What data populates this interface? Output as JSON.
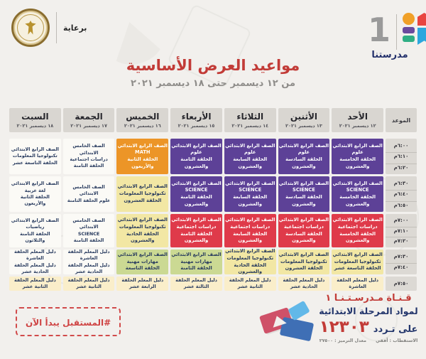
{
  "header": {
    "sponsor_label": "برعاية",
    "channel_number": "1",
    "brand_name": "مدرستنا",
    "title": "مواعيد العرض الأساسية",
    "subtitle": "من ١٢ ديسمبر حتى ١٨ ديسمبر ٢٠٢١"
  },
  "colors": {
    "title_red": "#c23b37",
    "navy": "#22356b",
    "purple": "#5d4197",
    "orange": "#ec9527",
    "red": "#df3a4a",
    "yellow": "#f2e7a4",
    "green": "#cbd993",
    "cream": "#faeeca",
    "white_cell": "#fbfaf6",
    "header_gray": "#d9d6d1"
  },
  "table": {
    "time_header": "الموعد",
    "days": [
      {
        "name": "الأحد",
        "date": "١٢ ديسمبر ٢٠٢١"
      },
      {
        "name": "الأثنين",
        "date": "١٣ ديسمبر ٢٠٢١"
      },
      {
        "name": "الثلاثاء",
        "date": "١٤ ديسمبر ٢٠٢١"
      },
      {
        "name": "الأربعاء",
        "date": "١٥ ديسمبر ٢٠٢١"
      },
      {
        "name": "الخميس",
        "date": "١٦ ديسمبر ٢٠٢١"
      },
      {
        "name": "الجمعة",
        "date": "١٧ ديسمبر ٢٠٢١"
      },
      {
        "name": "السبت",
        "date": "١٨ ديسمبر ٢٠٢١"
      }
    ],
    "rows": [
      {
        "times": [
          "٦:٠٠م",
          "٦:١٠م",
          "٦:٢٠م"
        ],
        "cells": [
          {
            "color": "purple",
            "lines": [
              "الصف الرابع الابتدائي",
              "علوم",
              "الحلقة الخامسة والعشرون"
            ]
          },
          {
            "color": "purple",
            "lines": [
              "الصف الرابع الابتدائي",
              "علوم",
              "الحلقة السادسة والعشرون"
            ]
          },
          {
            "color": "purple",
            "lines": [
              "الصف الرابع الابتدائي",
              "علوم",
              "الحلقة السابعة والعشرون"
            ]
          },
          {
            "color": "purple",
            "lines": [
              "الصف الرابع الابتدائي",
              "علوم",
              "الحلقة الثامنة والعشرون"
            ]
          },
          {
            "color": "orange",
            "lines": [
              "الصف الرابع الابتدائي",
              "MATH",
              "الحلقة الثانية والأربعون"
            ]
          },
          {
            "color": "white",
            "lines": [
              "الصف الخامس الابتدائي",
              "دراسات اجتماعية",
              "الحلقة الثامنة"
            ]
          },
          {
            "color": "white",
            "lines": [
              "الصف الرابع الابتدائي",
              "تكنولوجيا المعلومات",
              "الحلقة التاسعة عشر"
            ]
          }
        ]
      },
      {
        "times": [
          "٦:٣٠م",
          "٦:٤٠م",
          "٦:٥٠م"
        ],
        "cells": [
          {
            "color": "purple",
            "lines": [
              "الصف الرابع الابتدائي",
              "SCIENCE",
              "الحلقة الخامسة والعشرون"
            ]
          },
          {
            "color": "purple",
            "lines": [
              "الصف الرابع الابتدائي",
              "SCIENCE",
              "الحلقة السادسة والعشرون"
            ]
          },
          {
            "color": "purple",
            "lines": [
              "الصف الرابع الابتدائي",
              "SCIENCE",
              "الحلقة السابعة والعشرون"
            ]
          },
          {
            "color": "purple",
            "lines": [
              "الصف الرابع الابتدائي",
              "SCIENCE",
              "الحلقة الثامنة والعشرون"
            ]
          },
          {
            "color": "yellow",
            "lines": [
              "الصف الرابع الابتدائي",
              "تكنولوجيا المعلومات",
              "الحلقة العشرون"
            ]
          },
          {
            "color": "white",
            "lines": [
              "الصف الخامس الابتدائي",
              "علوم  الحلقة الثامنة"
            ]
          },
          {
            "color": "white",
            "lines": [
              "الصف الرابع الابتدائي",
              "لغة عربية",
              "الحلقة الثانية والأربعون"
            ]
          }
        ]
      },
      {
        "times": [
          "٧:٠٠م",
          "٧:١٠م",
          "٧:٢٠م"
        ],
        "cells": [
          {
            "color": "red",
            "lines": [
              "الصف الرابع الابتدائي",
              "دراسات اجتماعية",
              "الحلقة الخامسة والعشرون"
            ]
          },
          {
            "color": "red",
            "lines": [
              "الصف الرابع الابتدائي",
              "دراسات اجتماعية",
              "الحلقة السادسة والعشرون"
            ]
          },
          {
            "color": "red",
            "lines": [
              "الصف الرابع الابتدائي",
              "دراسات اجتماعية",
              "الحلقة السابعة والعشرون"
            ]
          },
          {
            "color": "red",
            "lines": [
              "الصف الرابع الابتدائي",
              "دراسات اجتماعية",
              "الحلقة الثامنة والعشرون"
            ]
          },
          {
            "color": "yellow",
            "lines": [
              "الصف الرابع الابتدائي",
              "تكنولوجيا المعلومات",
              "الحلقة الحادية والعشرون"
            ]
          },
          {
            "color": "white",
            "lines": [
              "الصف الخامس الابتدائي",
              "SCIENCE",
              "الحلقة الثامنة"
            ]
          },
          {
            "color": "white",
            "lines": [
              "الصف الرابع الابتدائي",
              "رياضيات",
              "الحلقة الثامنة والثلاثون"
            ]
          }
        ]
      },
      {
        "times": [
          "٧:٣٠م",
          "٧:٤٠م"
        ],
        "cells": [
          {
            "color": "yellow",
            "lines": [
              "الصف الرابع الابتدائي",
              "تكنولوجيا المعلومات",
              "الحلقة التاسعة عشر"
            ]
          },
          {
            "color": "yellow",
            "lines": [
              "الصف الرابع الابتدائي",
              "تكنولوجيا المعلومات",
              "الحلقة العشرون"
            ]
          },
          {
            "color": "yellow",
            "lines": [
              "الصف الرابع الابتدائي",
              "تكنولوجيا المعلومات",
              "الحلقة الحادية والعشرون"
            ]
          },
          {
            "color": "green",
            "lines": [
              "الصف الرابع الابتدائي",
              "مهارات مهنية",
              "الحلقة الثامنة"
            ]
          },
          {
            "color": "green",
            "lines": [
              "الصف الرابع الابتدائي",
              "مهارات مهنية",
              "الحلقة التاسعة"
            ]
          },
          {
            "color": "white",
            "lines": [
              "دليل المعلم الحلقة العاشرة",
              "دليل المعلم الحلقة الحادية عشر"
            ]
          },
          {
            "color": "white",
            "lines": [
              "دليل المعلم الحلقة العاشرة",
              "دليل المعلم الحلقة الحادية عشر"
            ]
          }
        ]
      },
      {
        "times": [
          "٧:٥٠م"
        ],
        "cells": [
          {
            "color": "cream",
            "lines": [
              "دليل المعلم  الحلقة العاشرة"
            ]
          },
          {
            "color": "cream",
            "lines": [
              "دليل المعلم  الحلقة الحادية عشر"
            ]
          },
          {
            "color": "cream",
            "lines": [
              "دليل المعلم  الحلقة الثانية عشر"
            ]
          },
          {
            "color": "cream",
            "lines": [
              "دليل المعلم  الحلقة الثالثة عشر"
            ]
          },
          {
            "color": "cream",
            "lines": [
              "دليل المعلم  الحلقة الرابعة عشر"
            ]
          },
          {
            "color": "cream",
            "lines": [
              "دليل المعلم  الحلقة الثانية عشر"
            ]
          },
          {
            "color": "cream",
            "lines": [
              "دليل المعلم  الحلقة الثانية عشر"
            ]
          }
        ]
      }
    ]
  },
  "footer": {
    "hashtag": "#المستقبل يبدأ الآن",
    "channel_line1": "قـنـاة مـدرسـتـنـا ١",
    "channel_line2": "لمواد المرحلة الابتدائية",
    "frequency_prefix": "على تـردد",
    "frequency": "١٢٣٠٣",
    "tech_info": "الاستقطاب : أفقي      معدل الترميز : ٢٧٥٠٠"
  }
}
